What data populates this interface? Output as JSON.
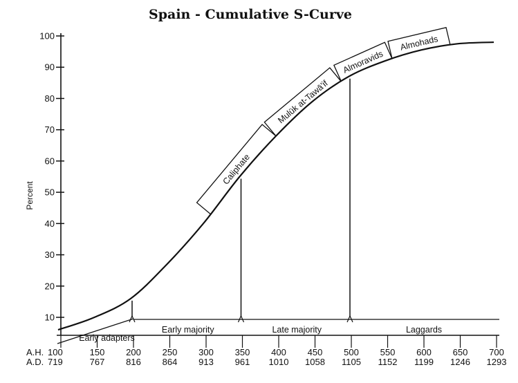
{
  "chart_data": {
    "type": "line",
    "title": "Spain - Cumulative S-Curve",
    "ylabel": "Percent",
    "ylim": [
      0,
      100
    ],
    "y_ticks": [
      10,
      20,
      30,
      40,
      50,
      60,
      70,
      80,
      90,
      100
    ],
    "xlim": [
      100,
      700
    ],
    "x_ticks_ah": [
      100,
      150,
      200,
      250,
      300,
      350,
      400,
      450,
      500,
      550,
      600,
      650,
      700
    ],
    "x_ticks_ad": [
      "719",
      "767",
      "816",
      "864",
      "913",
      "961",
      "1010",
      "1058",
      "1105",
      "1152",
      "1199",
      "1246",
      "1293"
    ],
    "x_row_labels": {
      "ah": "A.H.",
      "ad": "A.D."
    },
    "series": [
      {
        "x": [
          100,
          150,
          200,
          250,
          300,
          350,
          400,
          450,
          500,
          550,
          600,
          650,
          700
        ],
        "values": [
          6,
          10,
          16,
          27,
          40,
          55,
          68,
          79,
          87,
          92,
          95.5,
          97.5,
          98
        ]
      }
    ],
    "adopter_bands": [
      {
        "label": "Early adapters",
        "from": 100,
        "to": 200
      },
      {
        "label": "Early majority",
        "from": 200,
        "to": 350
      },
      {
        "label": "Late majority",
        "from": 350,
        "to": 500
      },
      {
        "label": "Laggards",
        "from": 500,
        "to": 700
      }
    ],
    "dividers_x": [
      200,
      350,
      500
    ],
    "periods": [
      {
        "label": "Caliphate",
        "from": 310,
        "to": 400
      },
      {
        "label": "Mulūk at-Tawā'if",
        "from": 400,
        "to": 490
      },
      {
        "label": "Almoravids",
        "from": 490,
        "to": 560
      },
      {
        "label": "Almohads",
        "from": 560,
        "to": 640
      }
    ]
  }
}
